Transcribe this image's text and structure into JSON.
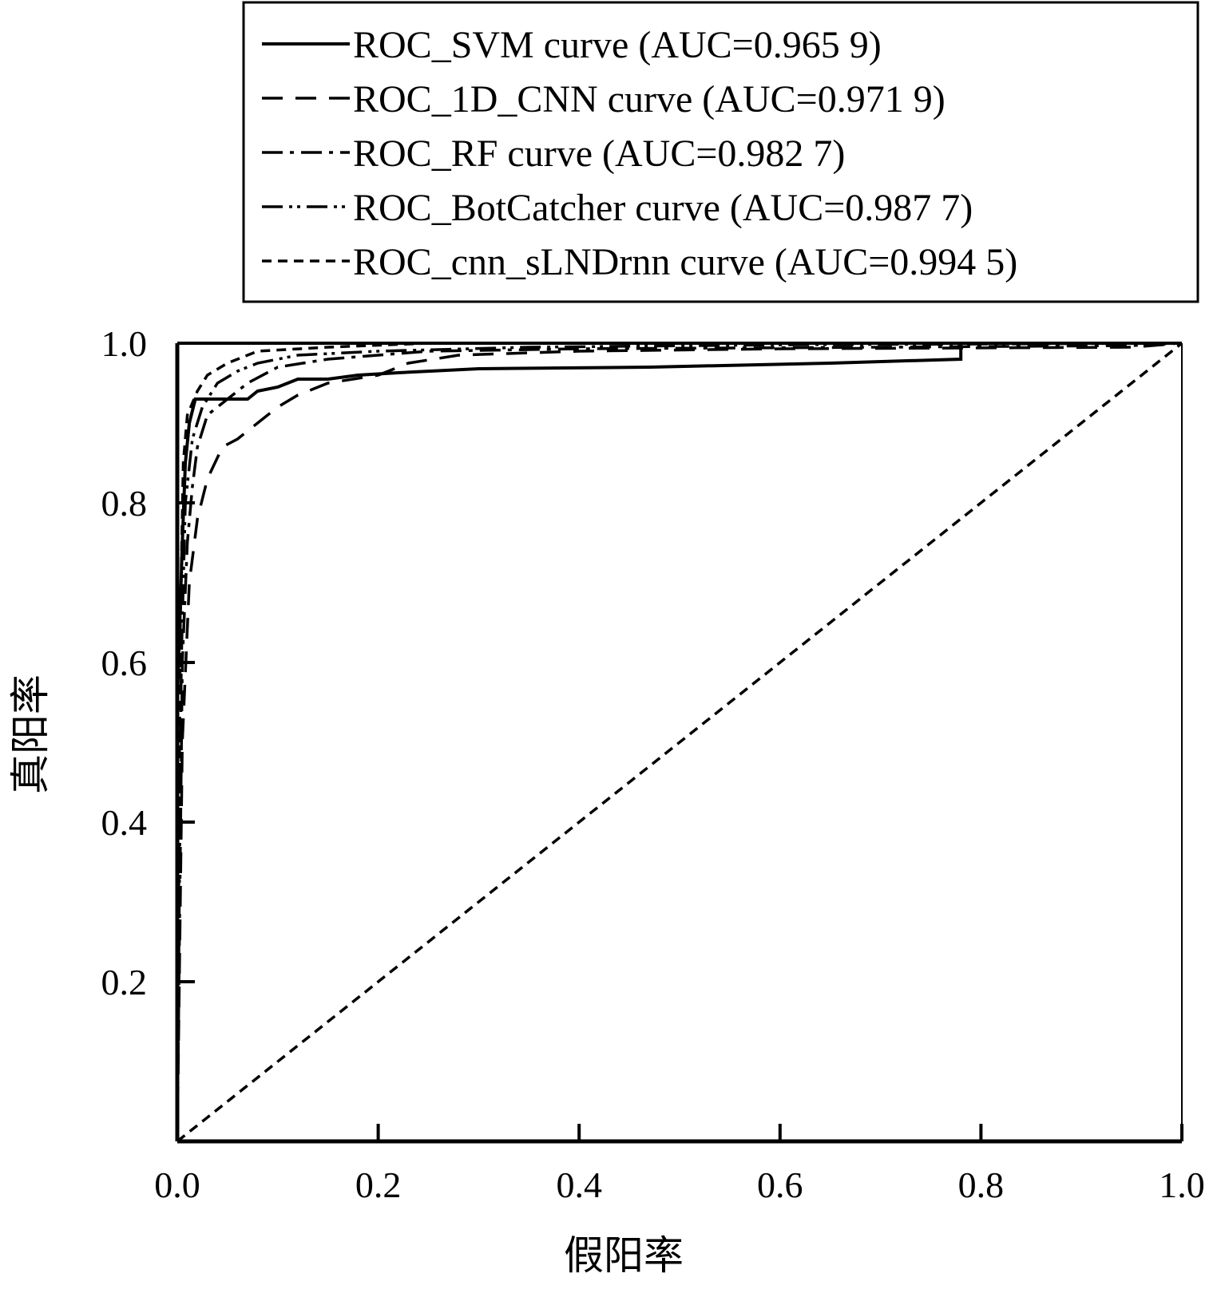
{
  "chart_data": {
    "type": "line",
    "xlabel": "假阳率",
    "ylabel": "真阳率",
    "xlim": [
      0.0,
      1.0
    ],
    "ylim": [
      0.0,
      1.0
    ],
    "x_ticks": [
      "0.0",
      "0.2",
      "0.4",
      "0.6",
      "0.8",
      "1.0"
    ],
    "y_ticks": [
      "0.2",
      "0.4",
      "0.6",
      "0.8",
      "1.0"
    ],
    "grid": false,
    "legend_position": "top",
    "series": [
      {
        "name": "ROC_SVM curve (AUC=0.965 9)",
        "dash": "solid",
        "points": [
          [
            0,
            0
          ],
          [
            0,
            0.55
          ],
          [
            0.005,
            0.75
          ],
          [
            0.008,
            0.85
          ],
          [
            0.012,
            0.9
          ],
          [
            0.018,
            0.93
          ],
          [
            0.07,
            0.93
          ],
          [
            0.08,
            0.94
          ],
          [
            0.1,
            0.945
          ],
          [
            0.12,
            0.955
          ],
          [
            0.15,
            0.955
          ],
          [
            0.18,
            0.96
          ],
          [
            0.22,
            0.963
          ],
          [
            0.3,
            0.968
          ],
          [
            0.47,
            0.97
          ],
          [
            0.65,
            0.975
          ],
          [
            0.78,
            0.98
          ],
          [
            0.78,
            1.0
          ],
          [
            1.0,
            1.0
          ]
        ]
      },
      {
        "name": "ROC_1D_CNN curve (AUC=0.971 9)",
        "dash": "long-dash",
        "points": [
          [
            0,
            0
          ],
          [
            0.005,
            0.5
          ],
          [
            0.012,
            0.7
          ],
          [
            0.02,
            0.78
          ],
          [
            0.03,
            0.83
          ],
          [
            0.045,
            0.87
          ],
          [
            0.06,
            0.88
          ],
          [
            0.08,
            0.9
          ],
          [
            0.1,
            0.92
          ],
          [
            0.12,
            0.935
          ],
          [
            0.15,
            0.95
          ],
          [
            0.2,
            0.96
          ],
          [
            0.23,
            0.975
          ],
          [
            0.28,
            0.985
          ],
          [
            0.4,
            0.99
          ],
          [
            0.6,
            0.993
          ],
          [
            0.95,
            0.995
          ],
          [
            1.0,
            1.0
          ]
        ]
      },
      {
        "name": "ROC_RF curve (AUC=0.982 7)",
        "dash": "dash-dot",
        "points": [
          [
            0,
            0
          ],
          [
            0.005,
            0.6
          ],
          [
            0.01,
            0.75
          ],
          [
            0.015,
            0.82
          ],
          [
            0.02,
            0.87
          ],
          [
            0.03,
            0.91
          ],
          [
            0.05,
            0.93
          ],
          [
            0.07,
            0.95
          ],
          [
            0.1,
            0.97
          ],
          [
            0.15,
            0.98
          ],
          [
            0.25,
            0.99
          ],
          [
            0.4,
            0.993
          ],
          [
            0.7,
            0.995
          ],
          [
            0.95,
            0.997
          ],
          [
            1.0,
            1.0
          ]
        ]
      },
      {
        "name": "ROC_BotCatcher curve (AUC=0.987 7)",
        "dash": "dash-dot-dot",
        "points": [
          [
            0,
            0
          ],
          [
            0.004,
            0.6
          ],
          [
            0.008,
            0.8
          ],
          [
            0.015,
            0.88
          ],
          [
            0.025,
            0.92
          ],
          [
            0.04,
            0.95
          ],
          [
            0.06,
            0.965
          ],
          [
            0.08,
            0.975
          ],
          [
            0.12,
            0.985
          ],
          [
            0.2,
            0.99
          ],
          [
            0.35,
            0.995
          ],
          [
            0.6,
            0.998
          ],
          [
            1.0,
            1.0
          ]
        ]
      },
      {
        "name": "ROC_cnn_sLNDrnn curve (AUC=0.994 5)",
        "dash": "short-dash",
        "points": [
          [
            0,
            0
          ],
          [
            0.003,
            0.65
          ],
          [
            0.006,
            0.85
          ],
          [
            0.01,
            0.91
          ],
          [
            0.02,
            0.94
          ],
          [
            0.03,
            0.96
          ],
          [
            0.05,
            0.975
          ],
          [
            0.08,
            0.99
          ],
          [
            0.15,
            0.995
          ],
          [
            0.25,
            1.0
          ],
          [
            1.0,
            1.0
          ]
        ]
      },
      {
        "name": "",
        "dash": "short-dash",
        "points": [
          [
            0,
            0
          ],
          [
            1.0,
            1.0
          ]
        ]
      }
    ]
  }
}
